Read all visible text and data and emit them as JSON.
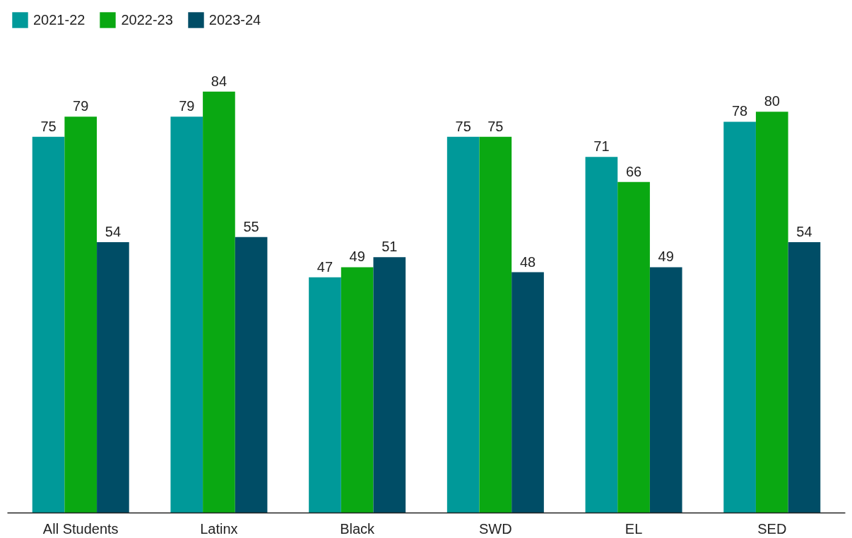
{
  "chart_data": {
    "type": "bar",
    "categories": [
      "All Students",
      "Latinx",
      "Black",
      "SWD",
      "EL",
      "SED"
    ],
    "series": [
      {
        "name": "2021-22",
        "color": "#009999",
        "values": [
          75,
          79,
          47,
          75,
          71,
          78
        ]
      },
      {
        "name": "2022-23",
        "color": "#0aa812",
        "values": [
          79,
          84,
          49,
          75,
          66,
          80
        ]
      },
      {
        "name": "2023-24",
        "color": "#004d66",
        "values": [
          54,
          55,
          51,
          48,
          49,
          54
        ]
      }
    ],
    "data_labels": true,
    "legend": "top left",
    "grid": false,
    "tick_labels": "x"
  }
}
